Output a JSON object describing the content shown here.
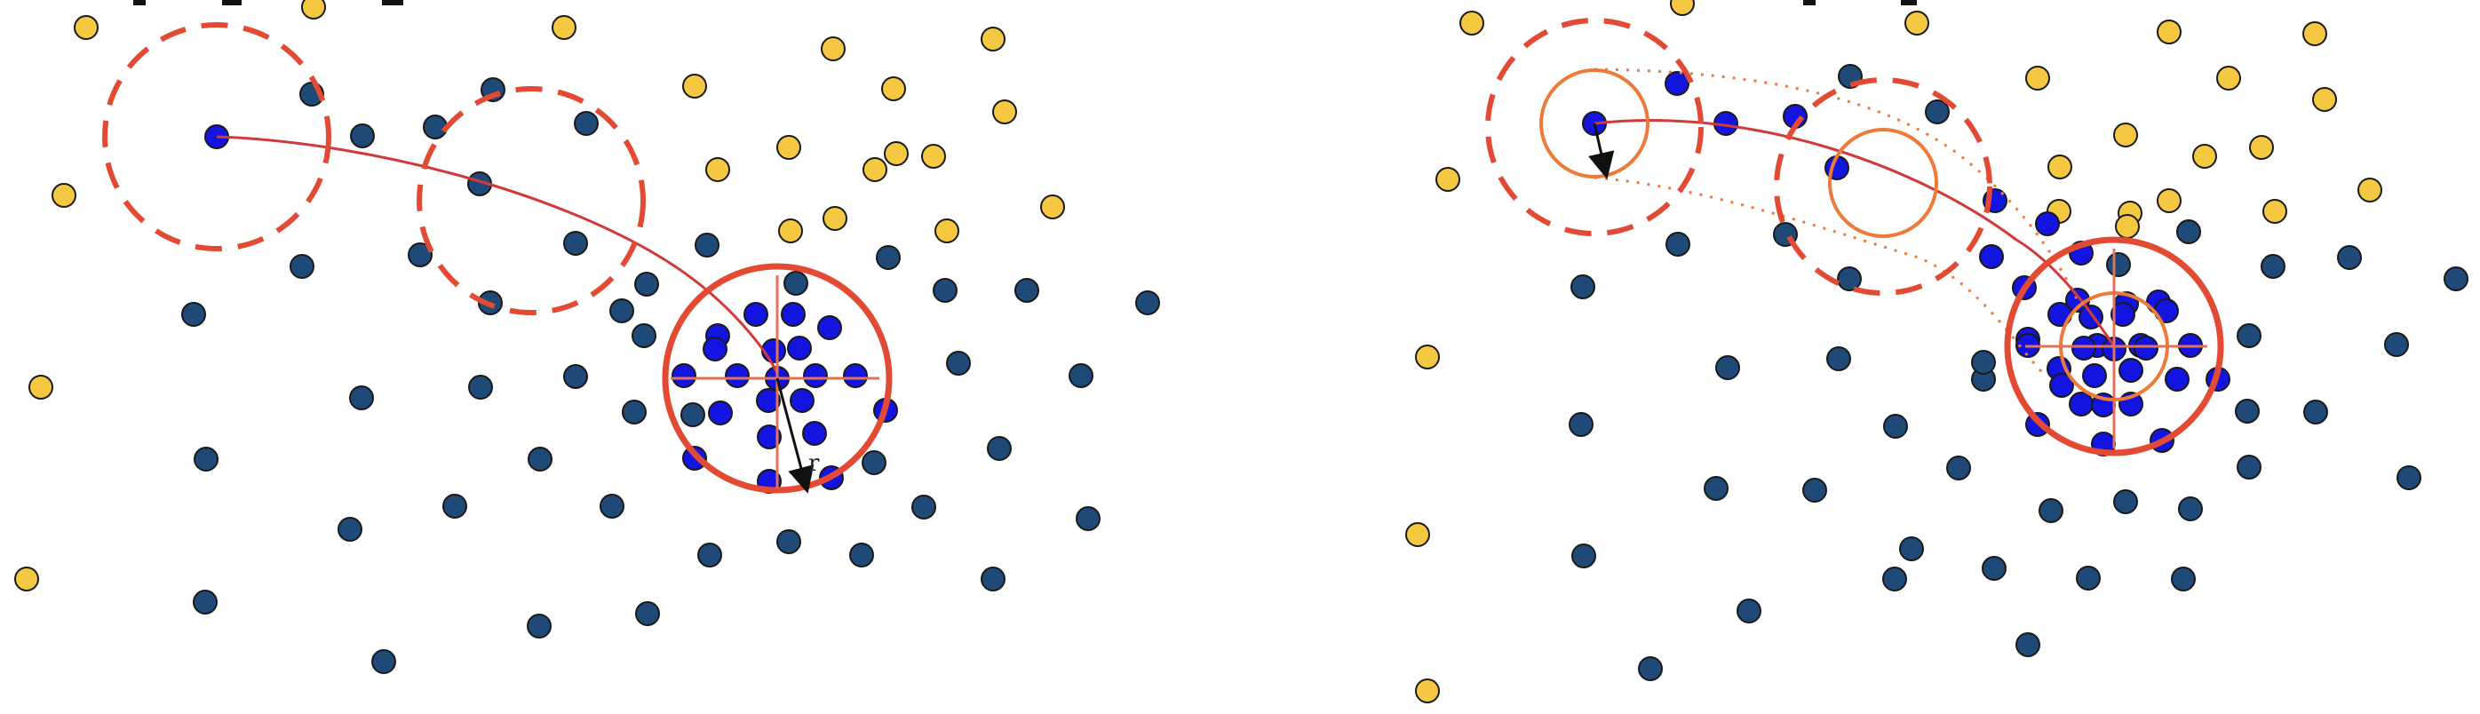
{
  "figure": {
    "radius_label": "r",
    "palette": {
      "background": "#ffffff",
      "yellow_point": "#F5C842",
      "navy_point": "#1F4A78",
      "blue_point": "#1414E0",
      "point_stroke": "#1a1a1a",
      "trajectory": "#D23A3A",
      "circle": "#E24A33",
      "inner_circle": "#EE7A3A",
      "crosshair": "#E0735A",
      "arrow": "#111111"
    }
  }
}
